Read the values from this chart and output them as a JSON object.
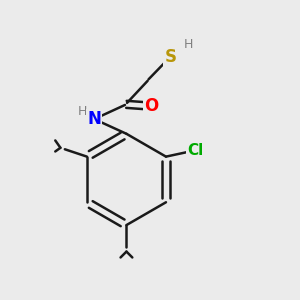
{
  "background_color": "#ebebeb",
  "bond_color": "#1a1a1a",
  "atom_colors": {
    "H_thiol": "#808080",
    "S": "#b8960a",
    "O": "#ff0000",
    "N": "#0000ff",
    "Cl": "#00aa00",
    "C": "#1a1a1a",
    "H_amine": "#808080"
  },
  "figsize": [
    3.0,
    3.0
  ],
  "dpi": 100
}
